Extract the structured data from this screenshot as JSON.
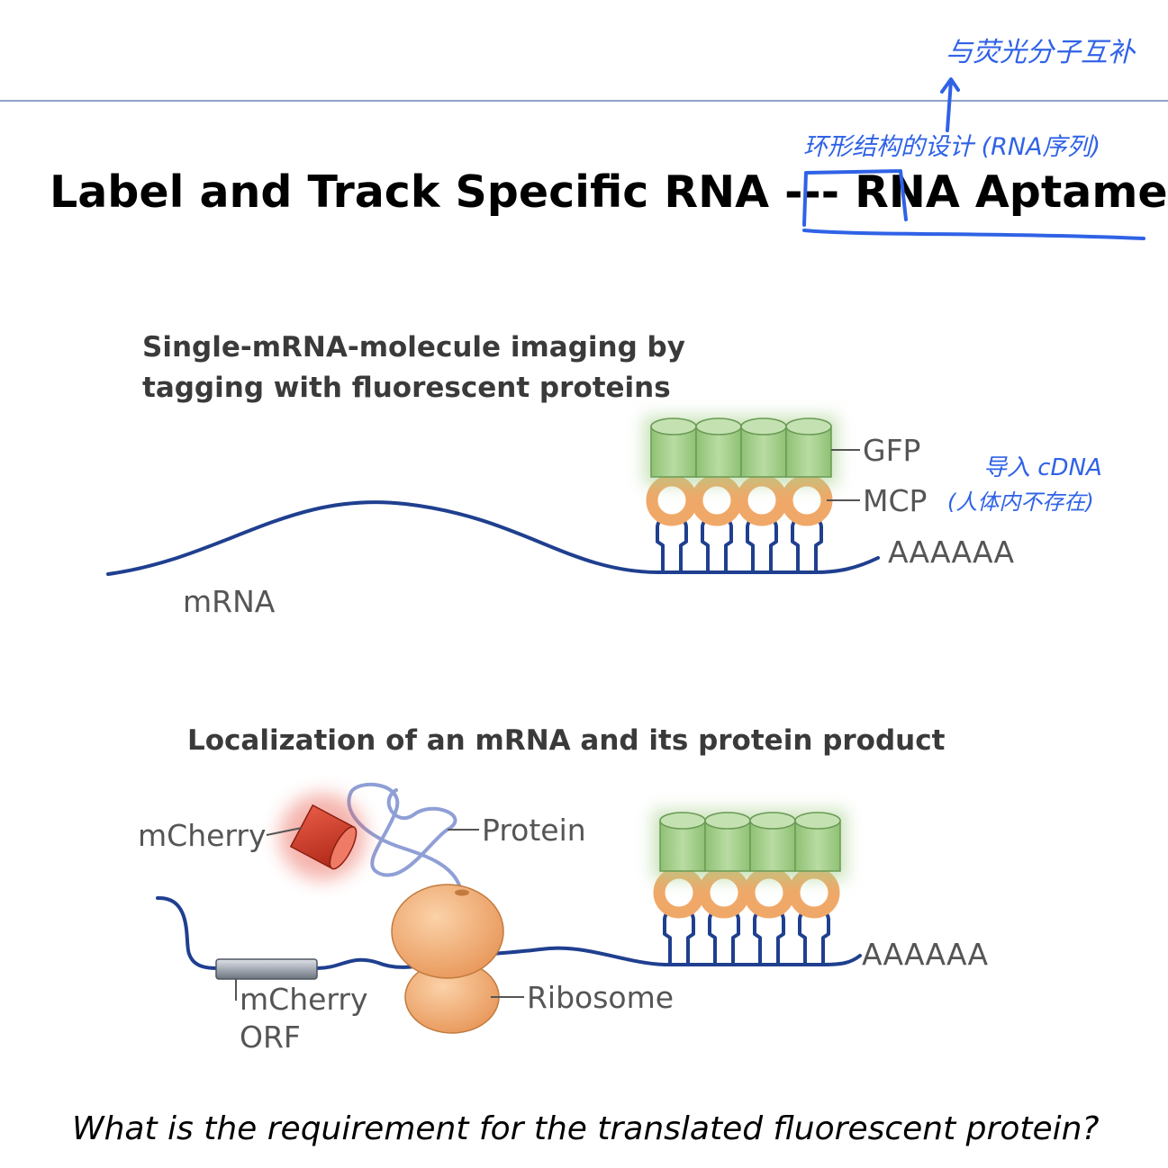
{
  "slide": {
    "title": "Label and Track Specific RNA --- RNA Aptamer",
    "question": "What is the requirement for the translated fluorescent protein?"
  },
  "panel_top": {
    "title_line1": "Single-mRNA-molecule imaging by",
    "title_line2": "tagging with fluorescent proteins",
    "labels": {
      "gfp": "GFP",
      "mcp": "MCP",
      "polya": "AAAAAA",
      "mrna": "mRNA"
    }
  },
  "panel_bottom": {
    "title": "Localization of an mRNA and its protein product",
    "labels": {
      "mcherry": "mCherry",
      "protein": "Protein",
      "orf_line1": "mCherry",
      "orf_line2": "ORF",
      "ribosome": "Ribosome",
      "polya": "AAAAAA"
    }
  },
  "handwritten_notes": {
    "top_right": "与荧光分子互补",
    "above_title": "环形结构的设计 (RNA序列)",
    "near_mcp_1": "导入 cDNA",
    "near_mcp_2": "(人体内不存在)"
  },
  "colors": {
    "rna_strand": "#1f3f8f",
    "gfp_fill": "#a8d08d",
    "mcp_fill": "#f0a868",
    "mcherry_fill": "#d63c2a",
    "ribosome_fill": "#f3b57a",
    "annotation_ink": "#2f62e6",
    "divider": "#8ea4c8"
  }
}
